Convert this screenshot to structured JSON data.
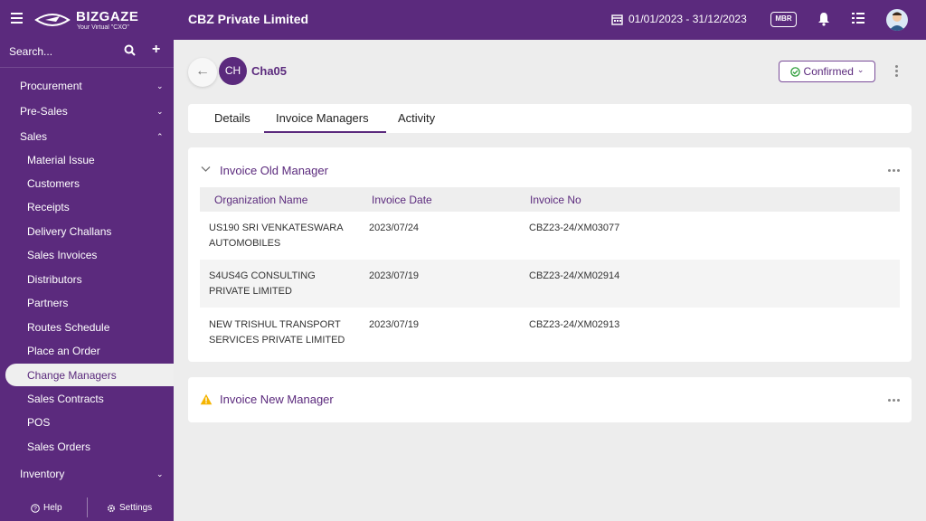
{
  "topbar": {
    "brand": "BIZGAZE",
    "tagline": "Your Virtual \"CXO\"",
    "company": "CBZ Private Limited",
    "date_range": "01/01/2023 - 31/12/2023",
    "mbr_badge": "MBR"
  },
  "sidebar": {
    "search_label": "Search...",
    "sections": [
      {
        "label": "Procurement",
        "expanded": false
      },
      {
        "label": "Pre-Sales",
        "expanded": false
      },
      {
        "label": "Sales",
        "expanded": true
      },
      {
        "label": "Inventory",
        "expanded": false
      }
    ],
    "sales_items": [
      "Material Issue",
      "Customers",
      "Receipts",
      "Delivery Challans",
      "Sales Invoices",
      "Distributors",
      "Partners",
      "Routes Schedule",
      "Place an Order",
      "Change Managers",
      "Sales Contracts",
      "POS",
      "Sales Orders"
    ],
    "active_item": "Change Managers",
    "footer": {
      "help": "Help",
      "settings": "Settings"
    }
  },
  "record": {
    "initials": "CH",
    "name": "Cha05",
    "status": "Confirmed"
  },
  "tabs": [
    {
      "label": "Details",
      "active": false
    },
    {
      "label": "Invoice Managers",
      "active": true
    },
    {
      "label": "Activity",
      "active": false
    }
  ],
  "old_manager": {
    "title": "Invoice Old Manager",
    "columns": [
      "Organization Name",
      "Invoice Date",
      "Invoice No"
    ],
    "rows": [
      {
        "org": "US190 SRI VENKATESWARA AUTOMOBILES",
        "date": "2023/07/24",
        "invoice": "CBZ23-24/XM03077"
      },
      {
        "org": "S4US4G CONSULTING PRIVATE LIMITED",
        "date": "2023/07/19",
        "invoice": "CBZ23-24/XM02914"
      },
      {
        "org": "NEW TRISHUL TRANSPORT SERVICES PRIVATE LIMITED",
        "date": "2023/07/19",
        "invoice": "CBZ23-24/XM02913"
      }
    ]
  },
  "new_manager": {
    "title": "Invoice New Manager"
  },
  "colors": {
    "brand": "#5b2a7d",
    "status_ok": "#2e9d3a",
    "warning": "#f5b400"
  }
}
